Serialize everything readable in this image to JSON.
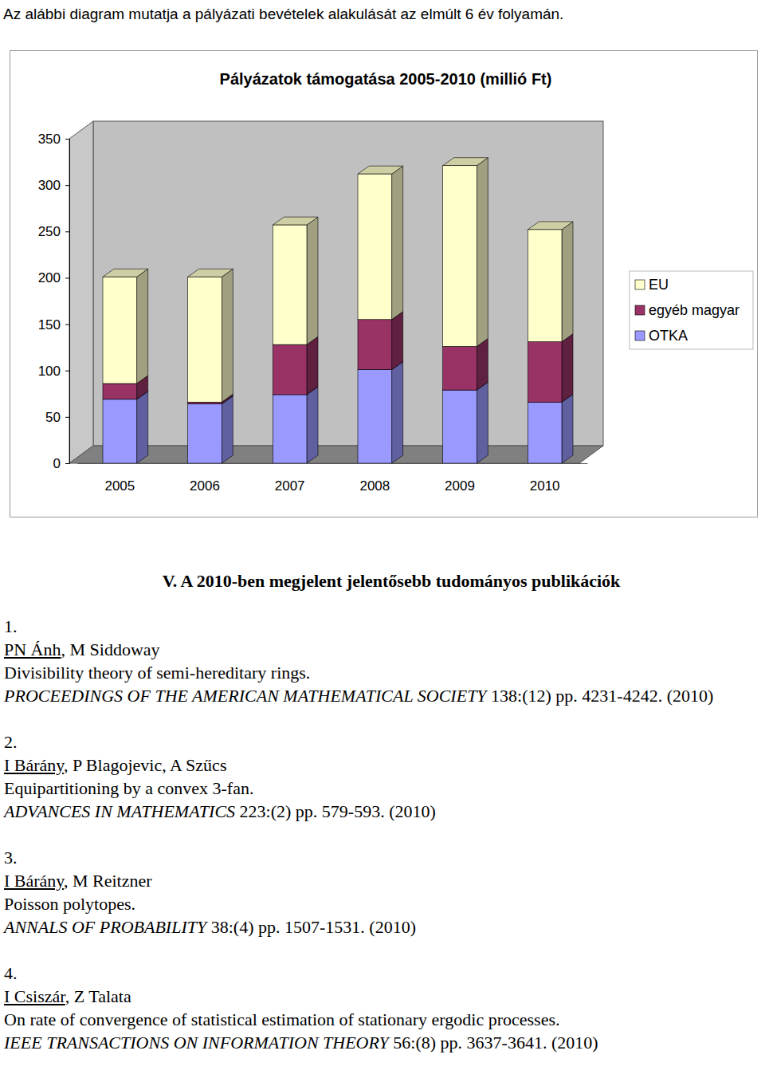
{
  "intro": "Az alábbi diagram mutatja a pályázati bevételek alakulását az elmúlt 6 év folyamán.",
  "chart_data": {
    "type": "bar",
    "stacked": true,
    "title": "Pályázatok támogatása 2005-2010 (millió Ft)",
    "categories": [
      "2005",
      "2006",
      "2007",
      "2008",
      "2009",
      "2010"
    ],
    "series": [
      {
        "name": "OTKA",
        "color": "#9999ff",
        "values": [
          69,
          64,
          74,
          101,
          79,
          66
        ]
      },
      {
        "name": "egyéb magyar",
        "color": "#993366",
        "values": [
          17,
          2,
          54,
          54,
          47,
          65
        ]
      },
      {
        "name": "EU",
        "color": "#ffffcc",
        "values": [
          115,
          135,
          129,
          157,
          195,
          121
        ]
      }
    ],
    "ylim": [
      0,
      350
    ],
    "yticks": [
      0,
      50,
      100,
      150,
      200,
      250,
      300,
      350
    ],
    "grid": false,
    "legend": "right"
  },
  "document": {
    "section_title": "V. A 2010-ben megjelent jelentősebb tudományos publikációk",
    "publications": [
      {
        "number": "1.",
        "first_author": "PN Ánh",
        "coauthors": ", M Siddoway",
        "title": "Divisibility theory of semi-hereditary rings.",
        "journal": "PROCEEDINGS OF THE AMERICAN MATHEMATICAL SOCIETY",
        "details": " 138:(12) pp. 4231-4242. (2010)"
      },
      {
        "number": "2.",
        "first_author": "I Bárány",
        "coauthors": ", P Blagojevic, A Szűcs",
        "title": "Equipartitioning by a convex 3-fan.",
        "journal": "ADVANCES IN MATHEMATICS",
        "details": " 223:(2) pp. 579-593. (2010)"
      },
      {
        "number": "3.",
        "first_author": "I Bárány",
        "coauthors": ", M Reitzner",
        "title": "Poisson polytopes.",
        "journal": "ANNALS OF PROBABILITY",
        "details": " 38:(4) pp. 1507-1531. (2010)"
      },
      {
        "number": "4.",
        "first_author": "I Csiszár",
        "coauthors": ", Z Talata",
        "title": "On rate of convergence of statistical estimation of stationary ergodic processes.",
        "journal": "IEEE TRANSACTIONS ON INFORMATION THEORY",
        "details": " 56:(8) pp. 3637-3641. (2010)"
      }
    ]
  }
}
